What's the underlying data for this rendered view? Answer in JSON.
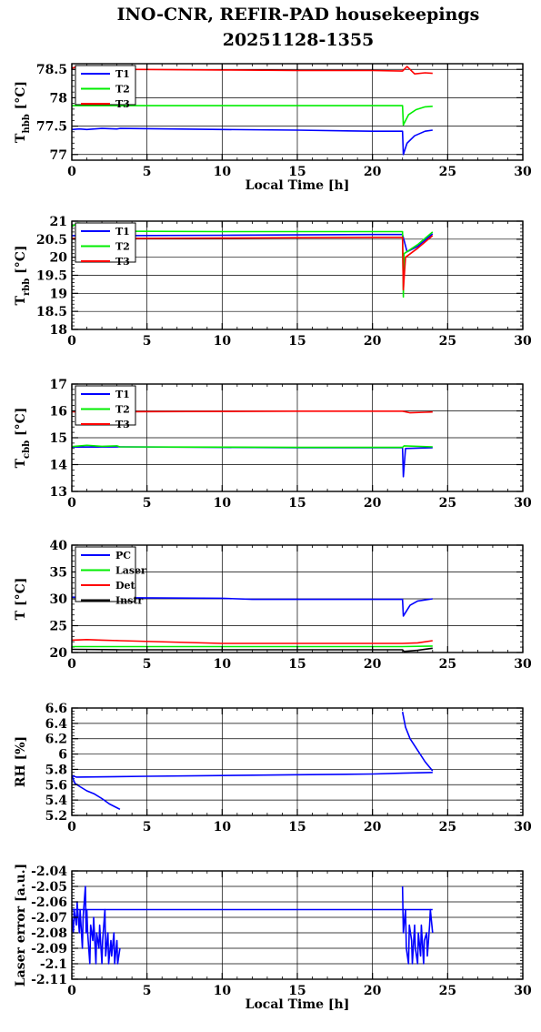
{
  "title_line1": "INO-CNR, REFIR-PAD housekeepings",
  "title_line2": "20251128-1355",
  "chart_data": [
    {
      "type": "line",
      "ylabel_main": "T",
      "ylabel_sub": "hbb",
      "ylabel_unit": "[°C]",
      "xlabel": "Local Time [h]",
      "xlim": [
        0,
        30
      ],
      "ylim": [
        76.9,
        78.6
      ],
      "xticks": [
        0,
        5,
        10,
        15,
        20,
        25,
        30
      ],
      "yticks": [
        77,
        77.5,
        78,
        78.5
      ],
      "ytick_labels": [
        "77",
        "77.5",
        "78",
        "78.5"
      ],
      "grid": true,
      "legend": "top-left",
      "series": [
        {
          "name": "T1",
          "color": "#0000ff",
          "x": [
            0,
            0.5,
            1,
            2,
            3,
            3.2,
            10,
            15,
            20,
            22.0,
            22.05,
            22.3,
            22.8,
            23.5,
            24
          ],
          "y": [
            77.44,
            77.45,
            77.44,
            77.46,
            77.45,
            77.46,
            77.44,
            77.43,
            77.41,
            77.41,
            77.0,
            77.2,
            77.33,
            77.41,
            77.43
          ]
        },
        {
          "name": "T2",
          "color": "#00ee00",
          "x": [
            0,
            3.2,
            10,
            15,
            20,
            22.0,
            22.05,
            22.4,
            22.9,
            23.5,
            24
          ],
          "y": [
            77.86,
            77.86,
            77.86,
            77.86,
            77.86,
            77.86,
            77.52,
            77.7,
            77.79,
            77.84,
            77.85
          ]
        },
        {
          "name": "T3",
          "color": "#ff0000",
          "x": [
            0,
            0.5,
            1,
            2,
            3,
            3.2,
            10,
            15,
            20,
            22.0,
            22.3,
            22.8,
            23.5,
            24
          ],
          "y": [
            78.52,
            78.56,
            78.53,
            78.55,
            78.52,
            78.5,
            78.49,
            78.48,
            78.48,
            78.47,
            78.55,
            78.42,
            78.44,
            78.43
          ]
        }
      ]
    },
    {
      "type": "line",
      "ylabel_main": "T",
      "ylabel_sub": "rbb",
      "ylabel_unit": "[°C]",
      "xlabel": "",
      "xlim": [
        0,
        30
      ],
      "ylim": [
        18,
        21
      ],
      "xticks": [
        0,
        5,
        10,
        15,
        20,
        25,
        30
      ],
      "yticks": [
        18,
        18.5,
        19,
        19.5,
        20,
        20.5,
        21
      ],
      "ytick_labels": [
        "18",
        "18.5",
        "19",
        "19.5",
        "20",
        "20.5",
        "21"
      ],
      "grid": true,
      "legend": "top-left",
      "series": [
        {
          "name": "T1",
          "color": "#0000ff",
          "x": [
            0,
            3.2,
            10,
            15,
            20,
            22.0,
            22.3,
            23,
            24
          ],
          "y": [
            20.6,
            20.6,
            20.61,
            20.62,
            20.63,
            20.63,
            20.15,
            20.3,
            20.65
          ]
        },
        {
          "name": "T2",
          "color": "#00ee00",
          "x": [
            0,
            0.4,
            1,
            2,
            3,
            3.2,
            10,
            15,
            20,
            22.0,
            22.05,
            22.1,
            23,
            24
          ],
          "y": [
            20.85,
            20.95,
            20.93,
            20.9,
            20.82,
            20.72,
            20.71,
            20.71,
            20.71,
            20.71,
            18.9,
            20.1,
            20.35,
            20.7
          ]
        },
        {
          "name": "T3",
          "color": "#ff0000",
          "x": [
            0,
            3.2,
            10,
            15,
            20,
            22.0,
            22.05,
            22.2,
            23,
            24
          ],
          "y": [
            20.52,
            20.52,
            20.53,
            20.54,
            20.55,
            20.55,
            19.1,
            20.0,
            20.25,
            20.6
          ]
        }
      ]
    },
    {
      "type": "line",
      "ylabel_main": "T",
      "ylabel_sub": "cbb",
      "ylabel_unit": "[°C]",
      "xlabel": "",
      "xlim": [
        0,
        30
      ],
      "ylim": [
        13,
        17
      ],
      "xticks": [
        0,
        5,
        10,
        15,
        20,
        25,
        30
      ],
      "yticks": [
        13,
        14,
        15,
        16,
        17
      ],
      "ytick_labels": [
        "13",
        "14",
        "15",
        "16",
        "17"
      ],
      "grid": true,
      "legend": "top-left",
      "series": [
        {
          "name": "T1",
          "color": "#0000ff",
          "x": [
            0,
            3.2,
            10,
            15,
            20,
            22.0,
            22.05,
            22.2,
            24
          ],
          "y": [
            14.65,
            14.66,
            14.64,
            14.63,
            14.63,
            14.63,
            13.55,
            14.6,
            14.63
          ]
        },
        {
          "name": "T2",
          "color": "#00ee00",
          "x": [
            0,
            1,
            2,
            3,
            3.2,
            10,
            15,
            20,
            22.0,
            22.1,
            24
          ],
          "y": [
            14.67,
            14.72,
            14.68,
            14.7,
            14.66,
            14.65,
            14.64,
            14.64,
            14.64,
            14.7,
            14.66
          ]
        },
        {
          "name": "T3",
          "color": "#ff0000",
          "x": [
            0,
            3.2,
            10,
            15,
            20,
            22.0,
            22.5,
            23.5,
            24
          ],
          "y": [
            15.97,
            15.97,
            15.98,
            15.99,
            15.99,
            15.99,
            15.93,
            15.95,
            15.96
          ]
        }
      ]
    },
    {
      "type": "line",
      "ylabel_main": "T [°C]",
      "ylabel_sub": "",
      "ylabel_unit": "",
      "xlabel": "",
      "xlim": [
        0,
        30
      ],
      "ylim": [
        20,
        40
      ],
      "xticks": [
        0,
        5,
        10,
        15,
        20,
        25,
        30
      ],
      "yticks": [
        20,
        25,
        30,
        35,
        40
      ],
      "ytick_labels": [
        "20",
        "25",
        "30",
        "35",
        "40"
      ],
      "grid": true,
      "legend": "top-left",
      "series": [
        {
          "name": "PC",
          "color": "#0000ff",
          "x": [
            0,
            3.2,
            10,
            12,
            15,
            20,
            22.0,
            22.05,
            22.5,
            23,
            24
          ],
          "y": [
            30.3,
            30.2,
            30.1,
            29.9,
            29.9,
            29.9,
            29.9,
            26.8,
            28.8,
            29.6,
            30.0
          ]
        },
        {
          "name": "Laser",
          "color": "#00ee00",
          "x": [
            0,
            3.2,
            10,
            15,
            20,
            22.0,
            24
          ],
          "y": [
            21.1,
            21.1,
            21.1,
            21.1,
            21.1,
            21.1,
            21.2
          ]
        },
        {
          "name": "Det",
          "color": "#ff0000",
          "x": [
            0,
            1,
            2,
            3.2,
            10,
            15,
            20,
            22.0,
            23,
            24
          ],
          "y": [
            22.3,
            22.4,
            22.3,
            22.2,
            21.7,
            21.7,
            21.7,
            21.7,
            21.8,
            22.2
          ]
        },
        {
          "name": "Instr",
          "color": "#000000",
          "x": [
            0,
            3.2,
            10,
            15,
            20,
            22.0,
            22.1,
            23,
            24
          ],
          "y": [
            20.6,
            20.5,
            20.5,
            20.5,
            20.5,
            20.5,
            20.2,
            20.4,
            20.8
          ]
        }
      ]
    },
    {
      "type": "line",
      "ylabel_main": "RH [%]",
      "ylabel_sub": "",
      "ylabel_unit": "",
      "xlabel": "",
      "xlim": [
        0,
        30
      ],
      "ylim": [
        5.2,
        6.6
      ],
      "xticks": [
        0,
        5,
        10,
        15,
        20,
        25,
        30
      ],
      "yticks": [
        5.2,
        5.4,
        5.6,
        5.8,
        6,
        6.2,
        6.4,
        6.6
      ],
      "ytick_labels": [
        "5.2",
        "5.4",
        "5.6",
        "5.8",
        "6",
        "6.2",
        "6.4",
        "6.6"
      ],
      "grid": true,
      "legend": "none",
      "series": [
        {
          "name": "",
          "color": "#0000ff",
          "x": [
            0,
            0.2,
            0.5,
            1,
            1.5,
            2,
            2.5,
            3,
            3.2
          ],
          "y": [
            5.72,
            5.62,
            5.58,
            5.52,
            5.48,
            5.42,
            5.35,
            5.3,
            5.28
          ]
        },
        {
          "name": "",
          "color": "#0000ff",
          "x": [
            0,
            0.3,
            5,
            10,
            15,
            20,
            22,
            24
          ],
          "y": [
            5.72,
            5.7,
            5.71,
            5.72,
            5.73,
            5.74,
            5.75,
            5.76
          ]
        },
        {
          "name": "",
          "color": "#0000ff",
          "x": [
            22.0,
            22.2,
            22.5,
            23,
            23.5,
            24
          ],
          "y": [
            6.55,
            6.35,
            6.2,
            6.05,
            5.9,
            5.78
          ]
        }
      ]
    },
    {
      "type": "line",
      "ylabel_main": "Laser error [a.u.]",
      "ylabel_sub": "",
      "ylabel_unit": "",
      "xlabel": "Local Time [h]",
      "xlim": [
        0,
        30
      ],
      "ylim": [
        -2.11,
        -2.04
      ],
      "xticks": [
        0,
        5,
        10,
        15,
        20,
        25,
        30
      ],
      "yticks": [
        -2.11,
        -2.1,
        -2.09,
        -2.08,
        -2.07,
        -2.06,
        -2.05,
        -2.04
      ],
      "ytick_labels": [
        "-2.11",
        "-2.1",
        "-2.09",
        "-2.08",
        "-2.07",
        "-2.06",
        "-2.05",
        "-2.04"
      ],
      "grid": true,
      "legend": "none",
      "series": [
        {
          "name": "",
          "color": "#0000ff",
          "x": [
            0,
            0.1,
            0.15,
            0.3,
            0.35,
            0.5,
            0.55,
            0.7,
            0.75,
            0.9,
            0.95,
            1.0,
            1.05,
            1.2,
            1.25,
            1.4,
            1.45,
            1.6,
            1.65,
            1.8,
            1.85,
            2.0,
            2.05,
            2.2,
            2.25,
            2.4,
            2.45,
            2.6,
            2.65,
            2.8,
            2.85,
            3.0,
            3.05,
            3.2
          ],
          "y": [
            -2.07,
            -2.08,
            -2.065,
            -2.075,
            -2.06,
            -2.08,
            -2.065,
            -2.09,
            -2.07,
            -2.05,
            -2.08,
            -2.065,
            -2.08,
            -2.1,
            -2.075,
            -2.085,
            -2.07,
            -2.1,
            -2.08,
            -2.09,
            -2.075,
            -2.1,
            -2.085,
            -2.065,
            -2.095,
            -2.08,
            -2.1,
            -2.085,
            -2.095,
            -2.08,
            -2.1,
            -2.085,
            -2.1,
            -2.09
          ]
        },
        {
          "name": "",
          "color": "#0000ff",
          "x": [
            0,
            5,
            10,
            15,
            20,
            22,
            24
          ],
          "y": [
            -2.065,
            -2.065,
            -2.065,
            -2.065,
            -2.065,
            -2.065,
            -2.065
          ]
        },
        {
          "name": "",
          "color": "#0000ff",
          "x": [
            22.0,
            22.05,
            22.2,
            22.25,
            22.4,
            22.45,
            22.6,
            22.65,
            22.8,
            22.85,
            23.0,
            23.05,
            23.2,
            23.25,
            23.4,
            23.45,
            23.6,
            23.65,
            23.8,
            23.85,
            24
          ],
          "y": [
            -2.05,
            -2.08,
            -2.065,
            -2.09,
            -2.1,
            -2.075,
            -2.085,
            -2.1,
            -2.075,
            -2.09,
            -2.1,
            -2.08,
            -2.095,
            -2.075,
            -2.1,
            -2.085,
            -2.08,
            -2.095,
            -2.075,
            -2.065,
            -2.08
          ]
        }
      ]
    }
  ]
}
